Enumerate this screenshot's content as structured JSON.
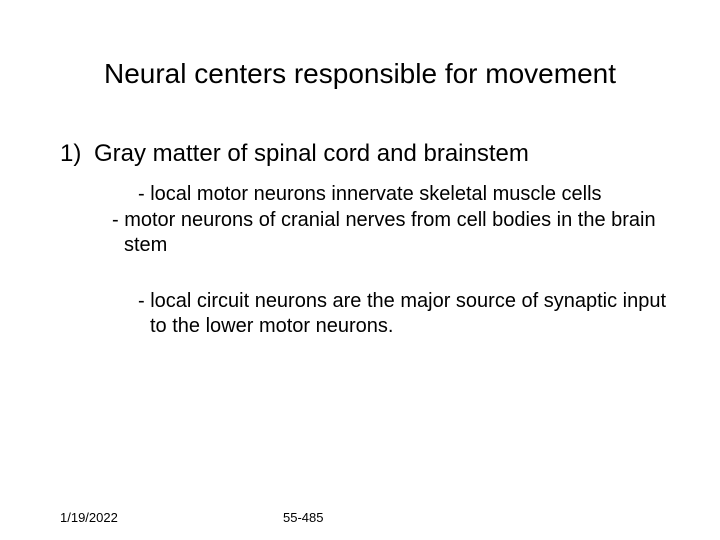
{
  "slide": {
    "title": "Neural centers responsible for movement",
    "item1_number": "1)",
    "item1_text": "Gray matter of spinal cord and brainstem",
    "sub1a": "- local motor neurons innervate skeletal muscle cells",
    "sub1b": "- motor neurons of cranial nerves from cell bodies in the brain stem",
    "sub2": "- local circuit neurons are the major source of synaptic input to the lower motor neurons."
  },
  "footer": {
    "date": "1/19/2022",
    "page": "55-485"
  },
  "style": {
    "background_color": "#ffffff",
    "text_color": "#000000",
    "title_fontsize": 28,
    "body_fontsize": 24,
    "sub_fontsize": 20,
    "footer_fontsize": 13,
    "font_family": "Arial"
  }
}
